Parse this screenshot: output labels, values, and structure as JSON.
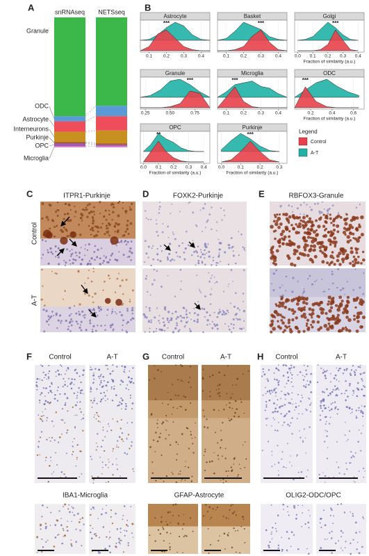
{
  "chart_data": [
    {
      "type": "bar",
      "stacked": true,
      "label": "A",
      "categories": [
        "snRNAseq",
        "NETSseq"
      ],
      "ylim": [
        0,
        100
      ],
      "series": [
        {
          "name": "Microglia",
          "color": "#e07bc8",
          "values": [
            1,
            1
          ]
        },
        {
          "name": "OPC",
          "color": "#9b59b6",
          "values": [
            2,
            1
          ]
        },
        {
          "name": "Purkinje",
          "color": "#a0522d",
          "values": [
            1,
            1
          ]
        },
        {
          "name": "Interneurons",
          "color": "#c8901e",
          "values": [
            8,
            10
          ]
        },
        {
          "name": "Astrocyte",
          "color": "#ee4d5a",
          "values": [
            8,
            11
          ]
        },
        {
          "name": "ODC",
          "color": "#5b9bd5",
          "values": [
            4,
            8
          ]
        },
        {
          "name": "Granule",
          "color": "#3cb84a",
          "values": [
            76,
            68
          ]
        }
      ]
    },
    {
      "type": "density",
      "title": "Astrocyte",
      "annotation": "***",
      "xlim": [
        0.05,
        0.45
      ],
      "xticks": [
        0.1,
        0.2,
        0.3,
        0.4
      ],
      "x": [
        0.05,
        0.1,
        0.15,
        0.2,
        0.25,
        0.3,
        0.35,
        0.4,
        0.45
      ],
      "series": [
        {
          "name": "Control",
          "color": "#e8414b",
          "values": [
            0,
            0.2,
            0.8,
            1,
            0.6,
            0.2,
            0.05,
            0,
            0
          ]
        },
        {
          "name": "A-T",
          "color": "#20b2a6",
          "values": [
            0,
            0.05,
            0.3,
            0.7,
            1,
            0.8,
            0.3,
            0.05,
            0
          ]
        }
      ]
    },
    {
      "type": "density",
      "title": "Basket",
      "annotation": "***",
      "xlim": [
        0.05,
        0.45
      ],
      "xticks": [
        0.1,
        0.2,
        0.3,
        0.4
      ],
      "x": [
        0.05,
        0.1,
        0.15,
        0.2,
        0.25,
        0.3,
        0.35,
        0.4,
        0.45
      ],
      "series": [
        {
          "name": "Control",
          "color": "#e8414b",
          "values": [
            0,
            0,
            0.05,
            0.2,
            0.7,
            1,
            0.4,
            0.05,
            0
          ]
        },
        {
          "name": "A-T",
          "color": "#20b2a6",
          "values": [
            0,
            0.1,
            0.5,
            1,
            0.8,
            0.6,
            0.2,
            0.05,
            0
          ]
        }
      ]
    },
    {
      "type": "density",
      "title": "Golgi",
      "annotation": "***",
      "xlabel": "Fraction of similarity (a.u.)",
      "xlim": [
        -0.02,
        0.44
      ],
      "xticks": [
        {
          "value": 0,
          "label": "0.0"
        },
        0.1,
        0.2,
        0.3,
        0.4
      ],
      "x": [
        0,
        0.05,
        0.1,
        0.15,
        0.2,
        0.25,
        0.3,
        0.35,
        0.4
      ],
      "series": [
        {
          "name": "Control",
          "color": "#e8414b",
          "values": [
            0,
            0,
            0,
            0.05,
            0.3,
            1,
            0.5,
            0.05,
            0
          ]
        },
        {
          "name": "A-T",
          "color": "#20b2a6",
          "values": [
            0,
            0.05,
            0.2,
            0.6,
            1,
            0.7,
            0.3,
            0.05,
            0
          ]
        }
      ]
    },
    {
      "type": "density",
      "title": "Granule",
      "annotation": "***",
      "xlim": [
        0.2,
        0.9
      ],
      "xticks": [
        0.25,
        {
          "value": 0.5,
          "label": "0.50"
        },
        0.75
      ],
      "x": [
        0.2,
        0.3,
        0.4,
        0.5,
        0.6,
        0.7,
        0.8,
        0.9
      ],
      "series": [
        {
          "name": "Control",
          "color": "#e8414b",
          "values": [
            0,
            0,
            0,
            0.05,
            0.2,
            0.8,
            0.7,
            0
          ]
        },
        {
          "name": "A-T",
          "color": "#20b2a6",
          "values": [
            0,
            0.1,
            0.4,
            0.9,
            1,
            0.7,
            0.3,
            0
          ]
        }
      ]
    },
    {
      "type": "density",
      "title": "Microglia",
      "annotation": "***",
      "xlim": [
        0.05,
        0.45
      ],
      "xticks": [
        0.1,
        0.2,
        0.3,
        0.4
      ],
      "x": [
        0.05,
        0.1,
        0.15,
        0.2,
        0.25,
        0.3,
        0.35,
        0.4,
        0.45
      ],
      "series": [
        {
          "name": "Control",
          "color": "#e8414b",
          "values": [
            0,
            0.5,
            1,
            0.3,
            0.05,
            0,
            0,
            0,
            0
          ]
        },
        {
          "name": "A-T",
          "color": "#20b2a6",
          "values": [
            0,
            0.3,
            0.7,
            0.8,
            0.9,
            0.6,
            0.5,
            0.2,
            0
          ]
        }
      ]
    },
    {
      "type": "density",
      "title": "ODC",
      "annotation": "***",
      "xlabel": "Fraction of similarity (a.u.)",
      "xlim": [
        0.05,
        0.7
      ],
      "xticks": [
        0.2,
        0.4,
        0.6
      ],
      "x": [
        0.05,
        0.15,
        0.25,
        0.35,
        0.45,
        0.55,
        0.65
      ],
      "series": [
        {
          "name": "Control",
          "color": "#e8414b",
          "values": [
            0,
            1,
            0.3,
            0.05,
            0,
            0,
            0
          ]
        },
        {
          "name": "A-T",
          "color": "#20b2a6",
          "values": [
            0,
            0.4,
            0.8,
            1,
            0.6,
            0.3,
            0.1
          ]
        }
      ]
    },
    {
      "type": "density",
      "title": "OPC",
      "annotation": "**",
      "xlabel": "Fraction of similarity (a.u.)",
      "xlim": [
        -0.02,
        0.44
      ],
      "xticks": [
        {
          "value": 0,
          "label": "0.0"
        },
        0.1,
        0.2,
        0.3,
        0.4
      ],
      "x": [
        0,
        0.05,
        0.1,
        0.15,
        0.2,
        0.25,
        0.3,
        0.35,
        0.4
      ],
      "series": [
        {
          "name": "Control",
          "color": "#e8414b",
          "values": [
            0,
            0.5,
            1,
            0.5,
            0.2,
            0.05,
            0,
            0,
            0
          ]
        },
        {
          "name": "A-T",
          "color": "#20b2a6",
          "values": [
            0,
            0.4,
            1,
            0.7,
            0.5,
            0.2,
            0.05,
            0,
            0
          ]
        }
      ]
    },
    {
      "type": "density",
      "title": "Purkinje",
      "annotation": "***",
      "xlabel": "Fraction of similarity (a.u.)",
      "xlim": [
        -0.02,
        0.34
      ],
      "xticks": [
        {
          "value": 0,
          "label": "0.0"
        },
        0.1,
        0.2,
        0.3
      ],
      "x": [
        0,
        0.05,
        0.1,
        0.15,
        0.2,
        0.25,
        0.3
      ],
      "series": [
        {
          "name": "Control",
          "color": "#e8414b",
          "values": [
            0,
            0.1,
            0.5,
            1,
            0.5,
            0.1,
            0
          ]
        },
        {
          "name": "A-T",
          "color": "#20b2a6",
          "values": [
            0.1,
            0.6,
            1,
            0.7,
            0.3,
            0.05,
            0
          ]
        }
      ]
    }
  ],
  "panel_b": {
    "label": "B",
    "legend_title": "Legend"
  },
  "micrographs": [
    {
      "label": "C",
      "title": "ITPR1-Purkinje",
      "rows": [
        "Control",
        "A-T"
      ]
    },
    {
      "label": "D",
      "title": "FOXK2-Purkinje"
    },
    {
      "label": "E",
      "title": "RBFOX3-Granule"
    },
    {
      "label": "F",
      "columns": [
        "Control",
        "A-T"
      ],
      "title": "IBA1-Microglia"
    },
    {
      "label": "G",
      "columns": [
        "Control",
        "A-T"
      ],
      "title": "GFAP-Astrocyte"
    },
    {
      "label": "H",
      "columns": [
        "Control",
        "A-T"
      ],
      "title": "OLIG2-ODC/OPC"
    }
  ]
}
